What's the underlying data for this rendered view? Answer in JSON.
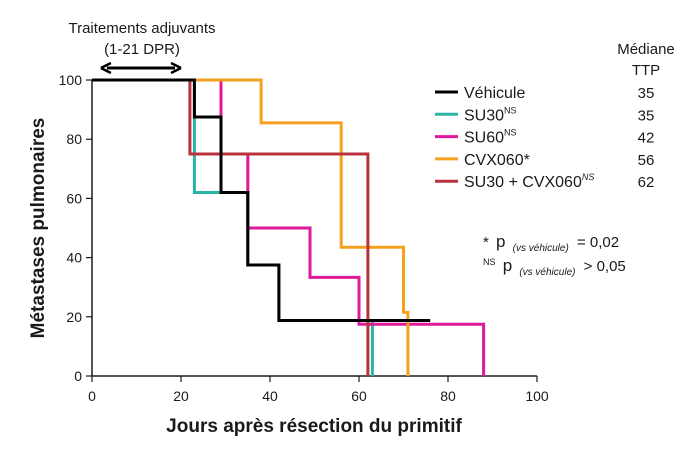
{
  "chart_data": {
    "type": "line",
    "xlabel": "Jours après résection du primitif",
    "ylabel": "Métastases pulmonaires",
    "xlim": [
      0,
      100
    ],
    "ylim": [
      0,
      100
    ],
    "xticks": [
      0,
      20,
      40,
      60,
      80,
      100
    ],
    "yticks": [
      0,
      20,
      40,
      60,
      80,
      100
    ],
    "grid": false,
    "step": true,
    "legend_position": "top-right",
    "treatment_annotation": {
      "line1": "Traitements adjuvants",
      "line2": "(1-21 DPR)",
      "x_range": [
        2,
        20
      ]
    },
    "median_header": {
      "line1": "Médiane",
      "line2": "TTP"
    },
    "series": [
      {
        "name": "Véhicule",
        "superscript": "",
        "color": "#000000",
        "median_ttp": "35",
        "points": [
          [
            0,
            100
          ],
          [
            23,
            100
          ],
          [
            23,
            87.5
          ],
          [
            29,
            87.5
          ],
          [
            29,
            62
          ],
          [
            35,
            62
          ],
          [
            35,
            37.5
          ],
          [
            42,
            37.5
          ],
          [
            42,
            18.75
          ],
          [
            76,
            18.75
          ]
        ]
      },
      {
        "name": "SU30",
        "superscript": "NS",
        "color": "#2bb3a3",
        "median_ttp": "35",
        "points": [
          [
            0,
            100
          ],
          [
            23,
            100
          ],
          [
            23,
            62
          ],
          [
            29,
            62
          ],
          [
            29,
            62
          ],
          [
            35,
            62
          ],
          [
            35,
            37.5
          ],
          [
            42,
            37.5
          ],
          [
            42,
            18.75
          ],
          [
            63,
            18.75
          ],
          [
            63,
            0
          ]
        ]
      },
      {
        "name": "SU60",
        "superscript": "NS",
        "color": "#e0189b",
        "median_ttp": "42",
        "points": [
          [
            0,
            100
          ],
          [
            29,
            100
          ],
          [
            29,
            75
          ],
          [
            35,
            75
          ],
          [
            35,
            50
          ],
          [
            49,
            50
          ],
          [
            49,
            33.3
          ],
          [
            60,
            33.3
          ],
          [
            60,
            17.5
          ],
          [
            88,
            17.5
          ],
          [
            88,
            0
          ]
        ]
      },
      {
        "name": "CVX060*",
        "superscript": "",
        "color": "#f5a11e",
        "median_ttp": "56",
        "points": [
          [
            0,
            100
          ],
          [
            38,
            100
          ],
          [
            38,
            85.5
          ],
          [
            56,
            85.5
          ],
          [
            56,
            43.5
          ],
          [
            70,
            43.5
          ],
          [
            70,
            21.5
          ],
          [
            71,
            21.5
          ],
          [
            71,
            0
          ]
        ]
      },
      {
        "name": "SU30  + CVX060",
        "superscript": "NS",
        "color": "#b8323c",
        "median_ttp": "62",
        "points": [
          [
            0,
            100
          ],
          [
            22,
            100
          ],
          [
            22,
            75
          ],
          [
            62,
            75
          ],
          [
            62,
            0
          ]
        ]
      }
    ],
    "annotations": [
      {
        "prefix": "*",
        "p": "p",
        "sub": "(vs véhicule)",
        "relation": "= 0,02"
      },
      {
        "prefix": "NS",
        "p": "p",
        "sub": "(vs véhicule)",
        "relation": "> 0,05"
      }
    ]
  }
}
